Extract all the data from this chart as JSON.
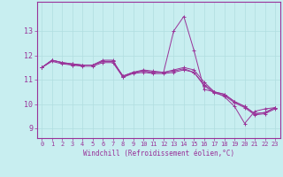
{
  "title": "",
  "xlabel": "Windchill (Refroidissement éolien,°C)",
  "ylabel": "",
  "bg_color": "#c8eef0",
  "grid_color": "#b0dde0",
  "line_color": "#993399",
  "xlim": [
    -0.5,
    23.5
  ],
  "ylim": [
    8.6,
    14.2
  ],
  "yticks": [
    9,
    10,
    11,
    12,
    13
  ],
  "xticks": [
    0,
    1,
    2,
    3,
    4,
    5,
    6,
    7,
    8,
    9,
    10,
    11,
    12,
    13,
    14,
    15,
    16,
    17,
    18,
    19,
    20,
    21,
    22,
    23
  ],
  "series": [
    [
      11.5,
      11.8,
      11.7,
      11.6,
      11.6,
      11.6,
      11.8,
      11.8,
      11.1,
      11.3,
      11.4,
      11.35,
      11.3,
      13.0,
      13.6,
      12.2,
      10.6,
      10.5,
      10.3,
      9.9,
      9.2,
      9.7,
      9.8,
      9.85
    ],
    [
      11.5,
      11.8,
      11.7,
      11.65,
      11.6,
      11.6,
      11.75,
      11.75,
      11.15,
      11.3,
      11.35,
      11.3,
      11.3,
      11.4,
      11.5,
      11.4,
      10.9,
      10.5,
      10.4,
      10.1,
      9.9,
      9.6,
      9.65,
      9.85
    ],
    [
      11.5,
      11.8,
      11.7,
      11.65,
      11.6,
      11.6,
      11.75,
      11.75,
      11.15,
      11.3,
      11.35,
      11.3,
      11.3,
      11.35,
      11.45,
      11.3,
      10.8,
      10.5,
      10.4,
      10.1,
      9.9,
      9.6,
      9.65,
      9.85
    ],
    [
      11.5,
      11.75,
      11.65,
      11.6,
      11.55,
      11.55,
      11.7,
      11.7,
      11.1,
      11.25,
      11.3,
      11.25,
      11.25,
      11.3,
      11.4,
      11.3,
      10.75,
      10.45,
      10.35,
      10.05,
      9.85,
      9.55,
      9.6,
      9.8
    ]
  ],
  "figsize": [
    3.2,
    2.0
  ],
  "dpi": 100
}
